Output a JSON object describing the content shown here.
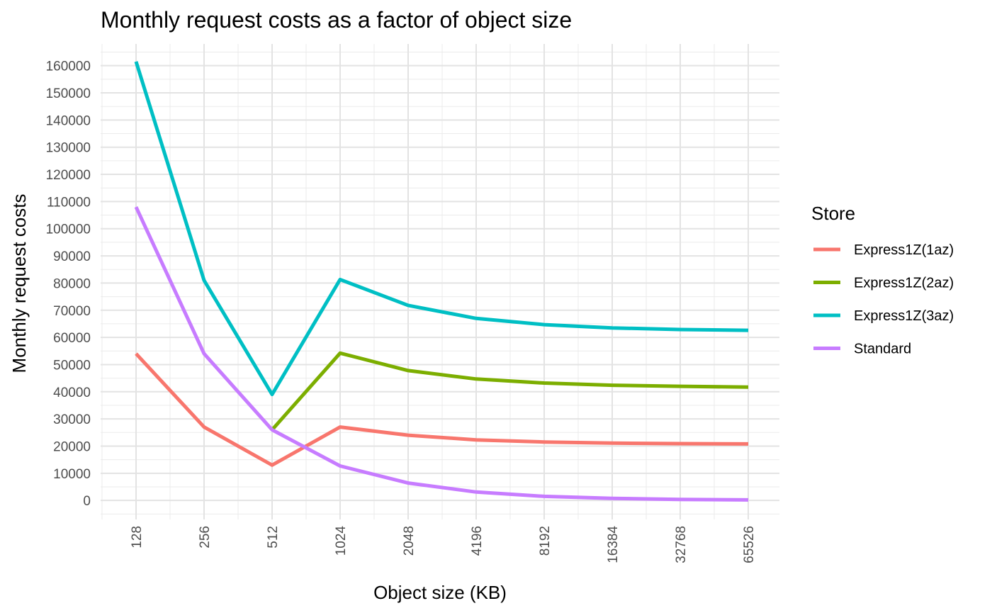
{
  "chart_data": {
    "type": "line",
    "title": "Monthly request costs as a factor of object size",
    "xlabel": "Object size (KB)",
    "ylabel": "Monthly request costs",
    "categories": [
      "128",
      "256",
      "512",
      "1024",
      "2048",
      "4196",
      "8192",
      "16384",
      "32768",
      "65526"
    ],
    "y_ticks": [
      "0",
      "10000",
      "20000",
      "30000",
      "40000",
      "50000",
      "60000",
      "70000",
      "80000",
      "90000",
      "100000",
      "110000",
      "120000",
      "130000",
      "140000",
      "150000",
      "160000"
    ],
    "ylim": [
      -7000,
      168000
    ],
    "grid": true,
    "legend": {
      "title": "Store",
      "position": "right"
    },
    "series": [
      {
        "name": "Express1Z(1az)",
        "color": "#F8766D",
        "values": [
          54000,
          27000,
          13000,
          27000,
          24000,
          22300,
          21500,
          21100,
          20900,
          20800
        ]
      },
      {
        "name": "Express1Z(2az)",
        "color": "#7CAE00",
        "values": [
          null,
          null,
          26000,
          54200,
          47800,
          44700,
          43200,
          42400,
          42000,
          41700
        ]
      },
      {
        "name": "Express1Z(3az)",
        "color": "#00BFC4",
        "values": [
          161500,
          81000,
          39000,
          81300,
          71800,
          67000,
          64700,
          63500,
          62900,
          62600
        ]
      },
      {
        "name": "Standard",
        "color": "#C77CFF",
        "values": [
          108000,
          54000,
          26000,
          12700,
          6400,
          3100,
          1500,
          750,
          380,
          190
        ]
      }
    ]
  }
}
